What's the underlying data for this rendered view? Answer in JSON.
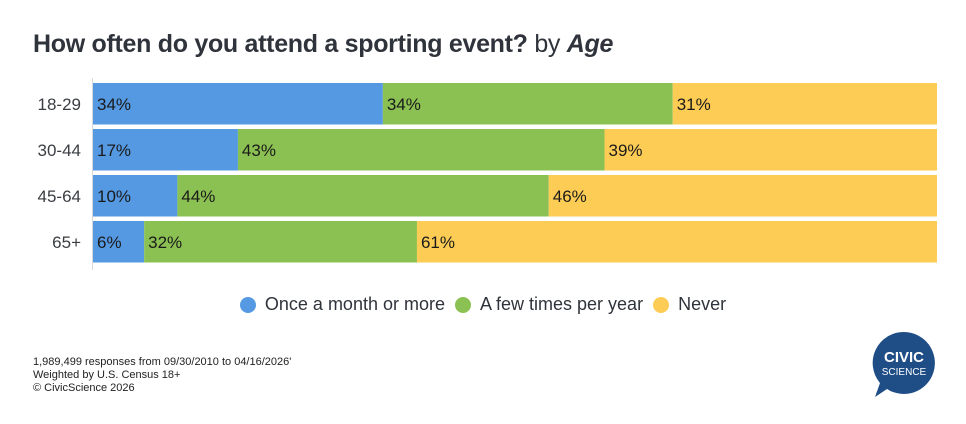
{
  "title": {
    "question": "How often do you attend a sporting event?",
    "by": "by",
    "dimension": "Age"
  },
  "chart_data": {
    "type": "bar",
    "orientation": "horizontal",
    "stacked": true,
    "title": "How often do you attend a sporting event? by Age",
    "categories": [
      "18-29",
      "30-44",
      "45-64",
      "65+"
    ],
    "series": [
      {
        "name": "Once a month or more",
        "color": "#5599e3",
        "values": [
          34,
          17,
          10,
          6
        ],
        "labels": [
          "34%",
          "17%",
          "10%",
          "6%"
        ]
      },
      {
        "name": "A few times per year",
        "color": "#8bc152",
        "values": [
          34,
          43,
          44,
          32
        ],
        "labels": [
          "34%",
          "43%",
          "44%",
          "32%"
        ]
      },
      {
        "name": "Never",
        "color": "#fdcc55",
        "values": [
          31,
          39,
          46,
          61
        ],
        "labels": [
          "31%",
          "39%",
          "46%",
          "61%"
        ]
      }
    ],
    "xlabel": "",
    "ylabel": "",
    "xlim": [
      0,
      100
    ],
    "legend": "bottom-center",
    "grid": false
  },
  "legend": {
    "items": [
      {
        "label": "Once a month or more",
        "color": "#5599e3"
      },
      {
        "label": "A few times per year",
        "color": "#8bc152"
      },
      {
        "label": "Never",
        "color": "#fdcc55"
      }
    ]
  },
  "footer": {
    "responses": "1,989,499 responses from 09/30/2010 to 04/16/2026'",
    "weighting": "Weighted by U.S. Census 18+",
    "copyright": "© CivicScience 2026"
  },
  "logo": {
    "line1": "CIVIC",
    "line2": "SCIENCE",
    "color": "#1f4e87"
  }
}
